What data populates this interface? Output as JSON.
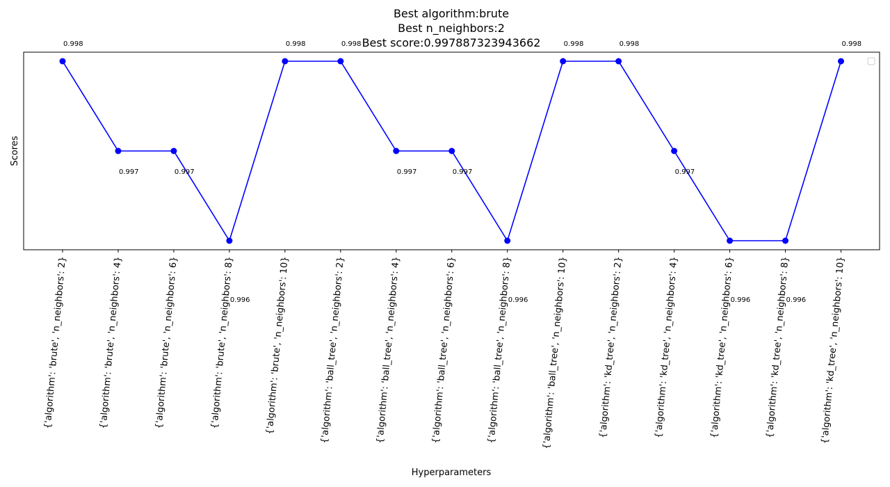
{
  "chart_data": {
    "type": "line",
    "title_lines": [
      "Best algorithm:brute",
      "Best n_neighbors:2",
      "Best score:0.997887323943662"
    ],
    "xlabel": "Hyperparameters",
    "ylabel": "Scores",
    "categories": [
      "{'algorithm': 'brute', 'n_neighbors': 2}",
      "{'algorithm': 'brute', 'n_neighbors': 4}",
      "{'algorithm': 'brute', 'n_neighbors': 6}",
      "{'algorithm': 'brute', 'n_neighbors': 8}",
      "{'algorithm': 'brute', 'n_neighbors': 10}",
      "{'algorithm': 'ball_tree', 'n_neighbors': 2}",
      "{'algorithm': 'ball_tree', 'n_neighbors': 4}",
      "{'algorithm': 'ball_tree', 'n_neighbors': 6}",
      "{'algorithm': 'ball_tree', 'n_neighbors': 8}",
      "{'algorithm': 'ball_tree', 'n_neighbors': 10}",
      "{'algorithm': 'kd_tree', 'n_neighbors': 2}",
      "{'algorithm': 'kd_tree', 'n_neighbors': 4}",
      "{'algorithm': 'kd_tree', 'n_neighbors': 6}",
      "{'algorithm': 'kd_tree', 'n_neighbors': 8}",
      "{'algorithm': 'kd_tree', 'n_neighbors': 10}"
    ],
    "values": [
      0.998,
      0.997,
      0.997,
      0.996,
      0.998,
      0.998,
      0.997,
      0.997,
      0.996,
      0.998,
      0.998,
      0.997,
      0.996,
      0.996,
      0.998
    ],
    "data_labels": [
      "0.998",
      "0.997",
      "0.997",
      "0.996",
      "0.998",
      "0.998",
      "0.997",
      "0.997",
      "0.996",
      "0.998",
      "0.998",
      "0.997",
      "0.996",
      "0.996",
      "0.998"
    ],
    "ylim": [
      0.9959,
      0.9981
    ],
    "yticks_visible": false,
    "grid": false,
    "legend": "top-right (empty)",
    "series_color": "#0000ff",
    "marker": "circle"
  }
}
